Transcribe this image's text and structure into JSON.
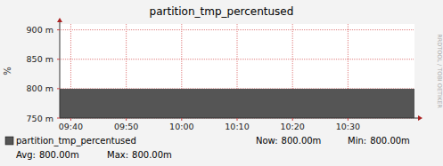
{
  "chart_data": {
    "type": "area",
    "title": "partition_tmp_percentused",
    "y_label": "%",
    "watermark": "RRDTOOL / TOBI OETIKER",
    "x": [
      578,
      582,
      586,
      590,
      594,
      598,
      602,
      606,
      610,
      614,
      618,
      622,
      626,
      630,
      634,
      638,
      642
    ],
    "series": [
      {
        "name": "partition_tmp_percentused",
        "color": "#555555",
        "values": [
          0.8,
          0.8,
          0.8,
          0.8,
          0.8,
          0.8,
          0.8,
          0.8,
          0.8,
          0.8,
          0.8,
          0.8,
          0.8,
          0.8,
          0.8,
          0.8,
          0.8
        ]
      }
    ],
    "xlim": [
      578,
      642
    ],
    "xticks": [
      {
        "value": 580,
        "label": "09:40"
      },
      {
        "value": 590,
        "label": "09:50"
      },
      {
        "value": 600,
        "label": "10:00"
      },
      {
        "value": 610,
        "label": "10:10"
      },
      {
        "value": 620,
        "label": "10:20"
      },
      {
        "value": 630,
        "label": "10:30"
      }
    ],
    "ylim": [
      0.75,
      0.91
    ],
    "yticks": [
      {
        "value": 0.75,
        "label": "750 m"
      },
      {
        "value": 0.8,
        "label": "800 m"
      },
      {
        "value": 0.85,
        "label": "850 m"
      },
      {
        "value": 0.9,
        "label": "900 m"
      }
    ],
    "grid": true,
    "legend": "bottom",
    "legend_stats": {
      "labels": [
        "Now:",
        "Min:",
        "Avg:",
        "Max:"
      ],
      "values": [
        0.8,
        0.8,
        0.8,
        0.8
      ],
      "value_labels": [
        "800.00m",
        "800.00m",
        "800.00m",
        "800.00m"
      ]
    }
  }
}
